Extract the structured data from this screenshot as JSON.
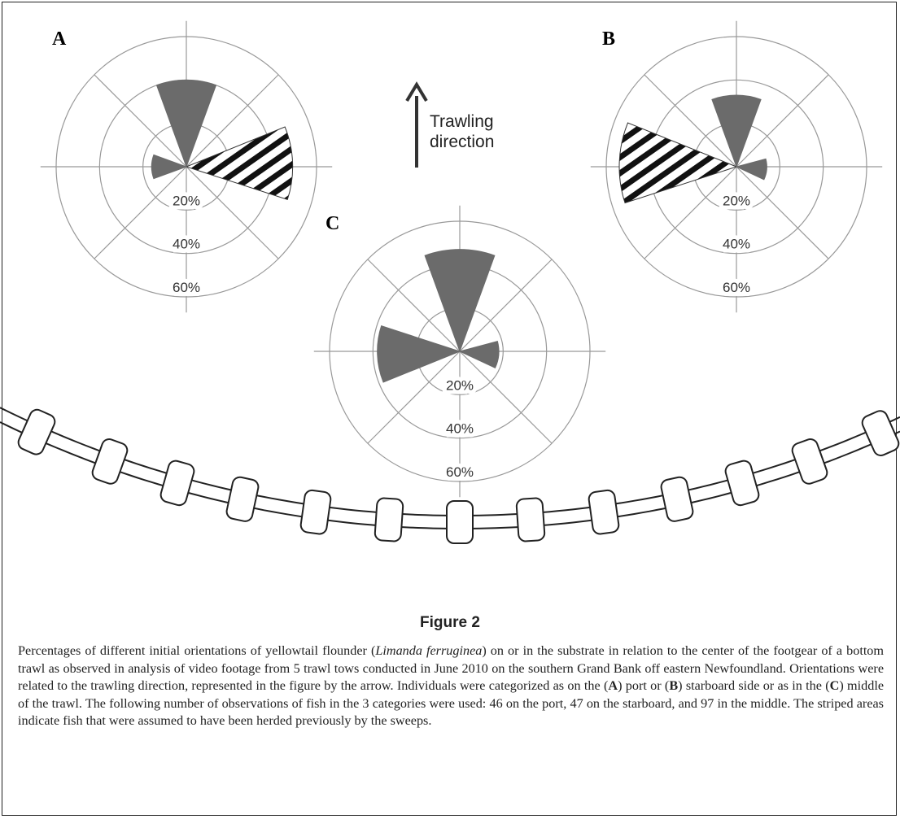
{
  "chart_data": [
    {
      "type": "polar",
      "title": "A",
      "rlim": [
        0,
        60
      ],
      "rticks": [
        {
          "value": 20,
          "label": "20%"
        },
        {
          "value": 40,
          "label": "40%"
        },
        {
          "value": 60,
          "label": "60%"
        }
      ],
      "theta": [
        0,
        88,
        270
      ],
      "values": [
        40,
        49,
        16
      ],
      "hatched": [
        false,
        true,
        false
      ],
      "color": "#6b6b6b"
    },
    {
      "type": "polar",
      "title": "B",
      "rlim": [
        0,
        60
      ],
      "rticks": [
        {
          "value": 20,
          "label": "20%"
        },
        {
          "value": 40,
          "label": "40%"
        },
        {
          "value": 60,
          "label": "60%"
        }
      ],
      "theta": [
        0,
        272,
        95
      ],
      "values": [
        33,
        54,
        14
      ],
      "hatched": [
        false,
        true,
        false
      ],
      "color": "#6b6b6b"
    },
    {
      "type": "polar",
      "title": "C",
      "rlim": [
        0,
        60
      ],
      "rticks": [
        {
          "value": 20,
          "label": "20%"
        },
        {
          "value": 40,
          "label": "40%"
        },
        {
          "value": 60,
          "label": "60%"
        }
      ],
      "theta": [
        0,
        268,
        95
      ],
      "values": [
        47,
        38,
        18
      ],
      "hatched": [
        false,
        false,
        false
      ],
      "color": "#6b6b6b"
    }
  ],
  "annotation": "Trawling direction",
  "figure_label": "Figure 2",
  "caption": [
    "Percentages of different initial orientations of yellowtail flounder (",
    "Limanda ferruginea",
    ") on or in the substrate in relation to the center of the footgear of a bottom trawl as observed in analysis of video footage from 5 trawl tows conducted in June 2010 on the southern Grand Bank off eastern Newfoundland. Orientations were related to the trawling direction, represented in the figure by the arrow. Individuals were categorized as on the (",
    "A",
    ") port or (",
    "B",
    ") starboard side or as in the (",
    "C",
    ") middle of the trawl. The following number of observations of fish in the 3 categories were used: 46 on the port, 47 on the starboard, and 97 in the middle. The striped areas indicate fish that were assumed to have been herded previously by the sweeps."
  ]
}
